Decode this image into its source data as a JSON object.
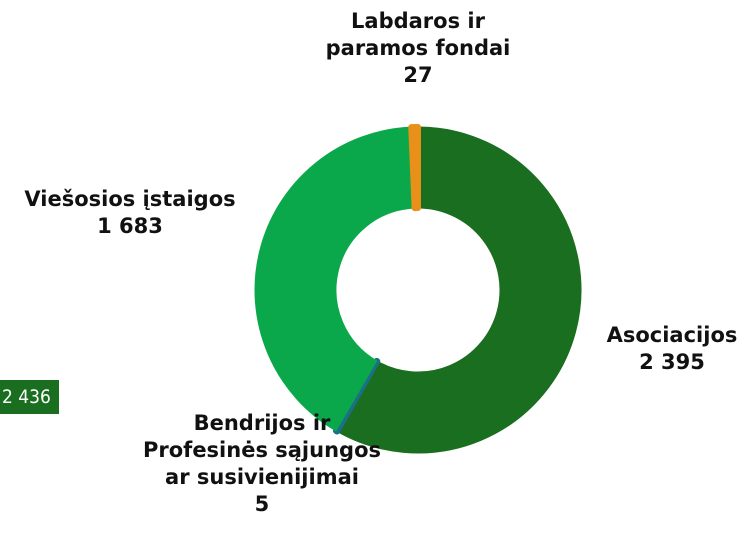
{
  "chart_data": {
    "type": "donut",
    "categories": [
      "Asociacijos",
      "Bendrijos ir\nProfesinės sąjungos\n ar susivienijimai",
      "Viešosios įstaigos",
      "Labdaros ir\nparamos fondai"
    ],
    "values": [
      2395,
      5,
      1683,
      27
    ],
    "value_labels": [
      "2 395",
      "5",
      "1 683",
      "27"
    ],
    "colors": [
      "#1a6e1f",
      "#1b6f86",
      "#0aa84a",
      "#e8901a"
    ],
    "annotation": "2 436"
  }
}
